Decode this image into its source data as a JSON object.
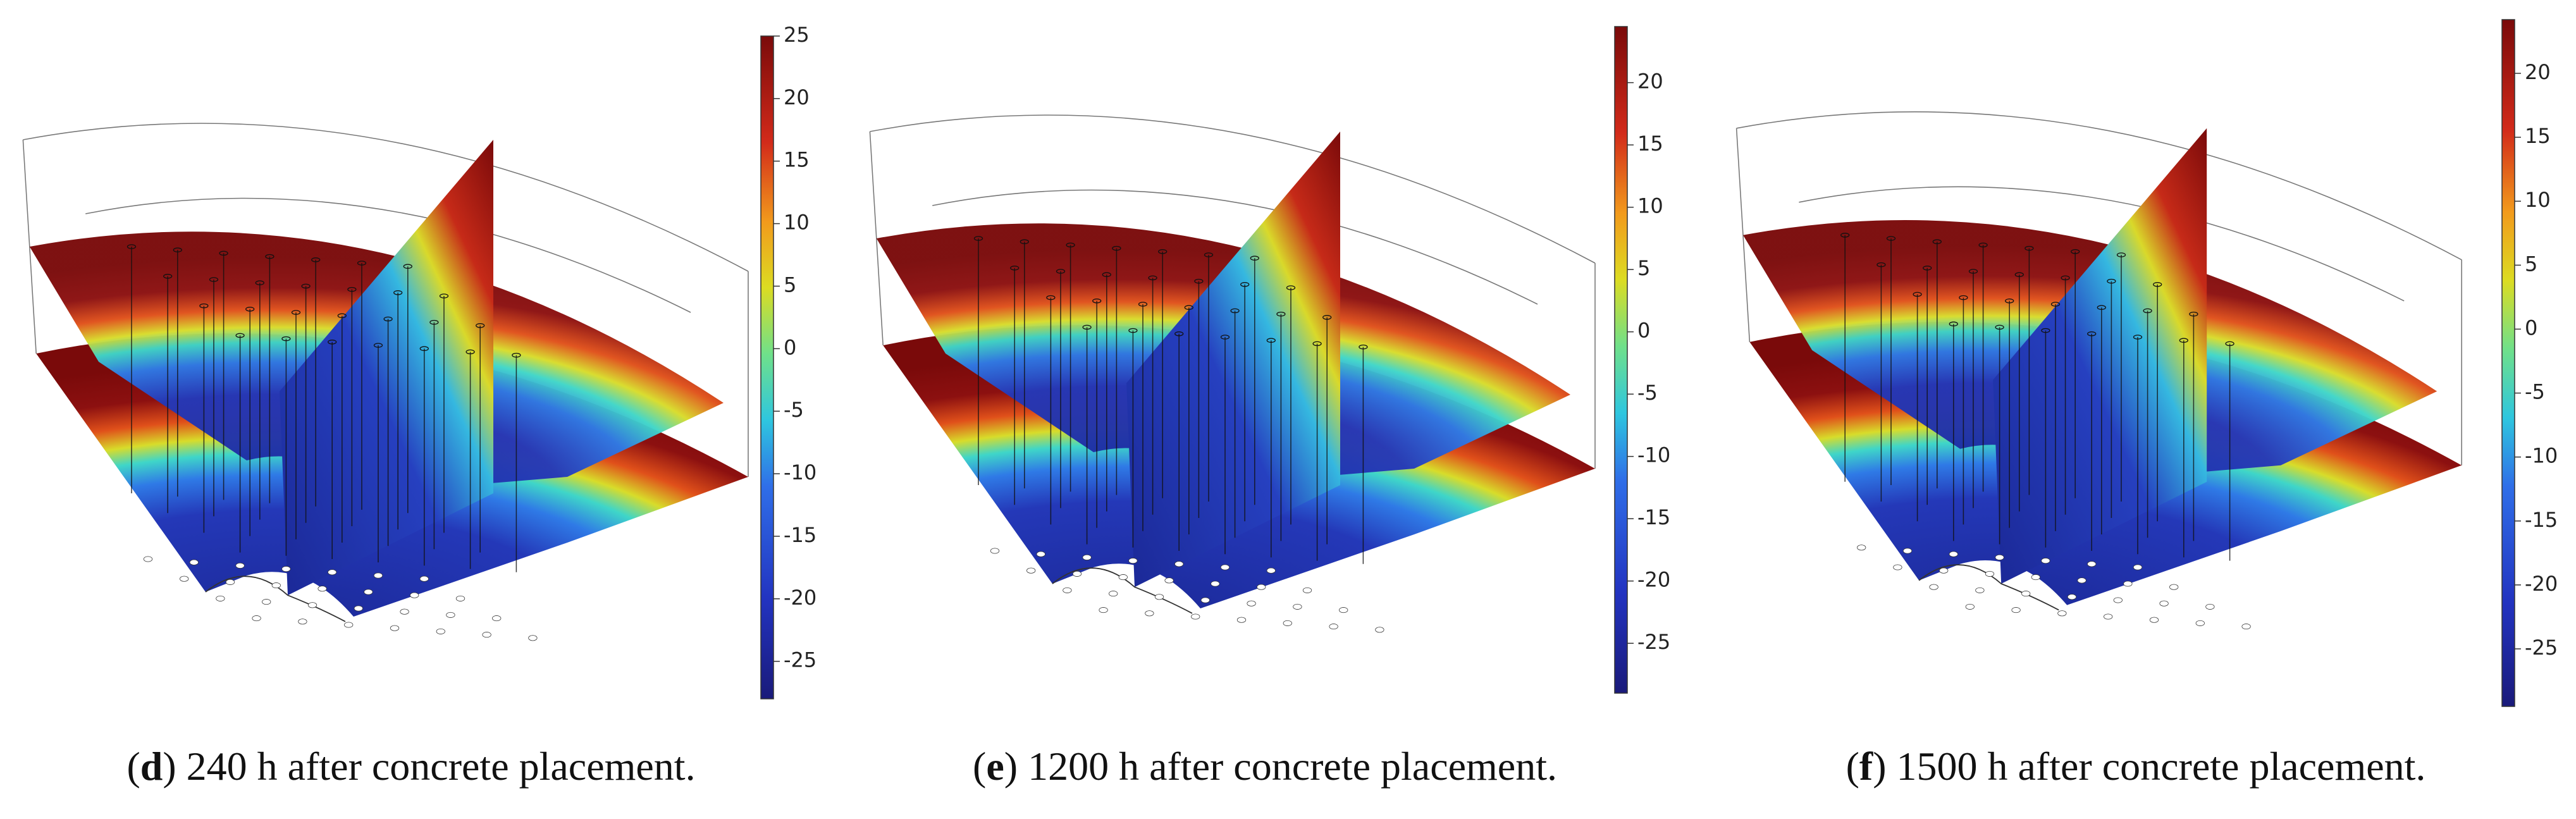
{
  "panels": [
    {
      "caption": [
        "(",
        "d",
        ") 240 h after concrete placement."
      ],
      "colorbar": {
        "range": [
          -28,
          25
        ],
        "ticks": [
          25,
          20,
          15,
          10,
          5,
          0,
          -5,
          -10,
          -15,
          -20,
          -25
        ]
      }
    },
    {
      "caption": [
        "(",
        "e",
        ") 1200 h after concrete placement."
      ],
      "colorbar": {
        "range": [
          -29,
          24.5
        ],
        "ticks": [
          20,
          15,
          10,
          5,
          0,
          -5,
          -10,
          -15,
          -20,
          -25
        ]
      }
    },
    {
      "caption": [
        "(",
        "f",
        ") 1500 h after concrete placement."
      ],
      "colorbar": {
        "range": [
          -29.5,
          24.2
        ],
        "ticks": [
          20,
          15,
          10,
          5,
          0,
          -5,
          -10,
          -15,
          -20,
          -25
        ]
      }
    }
  ]
}
